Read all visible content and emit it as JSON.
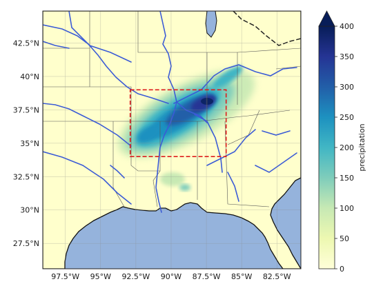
{
  "map": {
    "lon_ticks": [
      "97.5°W",
      "95°W",
      "92.5°W",
      "90°W",
      "87.5°W",
      "85°W",
      "82.5°W"
    ],
    "lon_values": [
      -97.5,
      -95,
      -92.5,
      -90,
      -87.5,
      -85,
      -82.5
    ],
    "lat_ticks": [
      "27.5°N",
      "30°N",
      "32.5°N",
      "35°N",
      "37.5°N",
      "40°N",
      "42.5°N"
    ],
    "lat_values": [
      27.5,
      30,
      32.5,
      35,
      37.5,
      40,
      42.5
    ],
    "extent": {
      "lon_min": -99.1,
      "lon_max": -80.8,
      "lat_min": 25.6,
      "lat_max": 44.9
    },
    "box": {
      "lon_min": -92.9,
      "lon_max": -86.1,
      "lat_min": 34.0,
      "lat_max": 39.0
    },
    "box_color": "#dd1c1c",
    "land_color": "#ffffcc",
    "water_color": "#95b3dc",
    "river_color": "#3b5bd6"
  },
  "colorbar": {
    "label": "precipitation",
    "ticks": [
      "0",
      "50",
      "100",
      "150",
      "200",
      "250",
      "300",
      "350",
      "400"
    ],
    "tick_values": [
      0,
      50,
      100,
      150,
      200,
      250,
      300,
      350,
      400
    ],
    "min": 0,
    "max": 400,
    "extend": "max",
    "colormap": [
      "#ffffd9",
      "#edf8b1",
      "#c7e9b4",
      "#7fcdbb",
      "#41b6c4",
      "#1d91c0",
      "#225ea8",
      "#253494",
      "#081d58"
    ]
  }
}
